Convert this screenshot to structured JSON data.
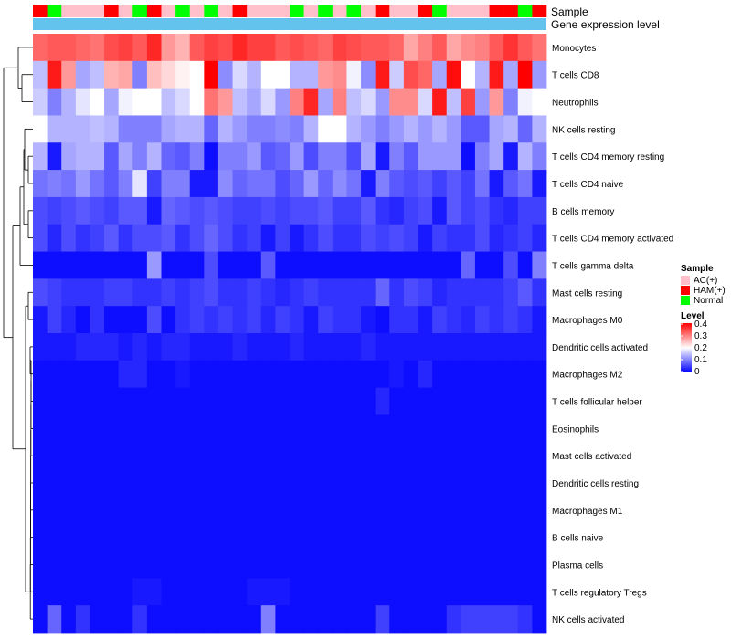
{
  "chart_data": {
    "type": "heatmap",
    "annotation_titles": [
      "Sample",
      "Gene expression level"
    ],
    "legend": {
      "sample_title": "Sample",
      "level_title": "Level",
      "groups": [
        {
          "name": "AC(+)",
          "color": "#ffc0cb"
        },
        {
          "name": "HAM(+)",
          "color": "#ff0000"
        },
        {
          "name": "Normal",
          "color": "#00ff00"
        }
      ],
      "level_ticks": [
        "0.4",
        "0.3",
        "0.2",
        "0.1",
        "0"
      ],
      "level_range": [
        0,
        0.4
      ]
    },
    "colors": {
      "low": "#0000ff",
      "mid": "#ffffff",
      "high": "#ff0000",
      "expression_bar": "#63c3ec"
    },
    "samples": [
      "HAM(+)",
      "Normal",
      "AC(+)",
      "AC(+)",
      "AC(+)",
      "HAM(+)",
      "AC(+)",
      "Normal",
      "HAM(+)",
      "AC(+)",
      "Normal",
      "AC(+)",
      "Normal",
      "AC(+)",
      "HAM(+)",
      "AC(+)",
      "AC(+)",
      "AC(+)",
      "Normal",
      "AC(+)",
      "Normal",
      "AC(+)",
      "Normal",
      "AC(+)",
      "HAM(+)",
      "AC(+)",
      "AC(+)",
      "HAM(+)",
      "Normal",
      "AC(+)",
      "AC(+)",
      "AC(+)",
      "HAM(+)",
      "HAM(+)",
      "Normal",
      "HAM(+)"
    ],
    "rows": [
      {
        "name": "Monocytes",
        "values": [
          0.32,
          0.33,
          0.33,
          0.32,
          0.31,
          0.34,
          0.35,
          0.33,
          0.37,
          0.28,
          0.26,
          0.33,
          0.35,
          0.34,
          0.37,
          0.35,
          0.35,
          0.33,
          0.34,
          0.33,
          0.32,
          0.35,
          0.34,
          0.33,
          0.33,
          0.32,
          0.27,
          0.3,
          0.33,
          0.27,
          0.29,
          0.3,
          0.33,
          0.36,
          0.33,
          0.31
        ]
      },
      {
        "name": "T cells CD8",
        "values": [
          0.15,
          0.38,
          0.28,
          0.13,
          0.15,
          0.26,
          0.27,
          0.1,
          0.25,
          0.23,
          0.21,
          0.2,
          0.4,
          0.11,
          0.17,
          0.14,
          0.2,
          0.2,
          0.14,
          0.14,
          0.28,
          0.29,
          0.19,
          0.11,
          0.38,
          0.16,
          0.34,
          0.32,
          0.13,
          0.39,
          0.2,
          0.14,
          0.38,
          0.13,
          0.4,
          0.12
        ]
      },
      {
        "name": "Neutrophils",
        "values": [
          0.16,
          0.1,
          0.14,
          0.18,
          0.2,
          0.13,
          0.19,
          0.2,
          0.2,
          0.15,
          0.17,
          0.2,
          0.31,
          0.28,
          0.15,
          0.13,
          0.17,
          0.12,
          0.3,
          0.37,
          0.13,
          0.3,
          0.15,
          0.17,
          0.12,
          0.29,
          0.29,
          0.17,
          0.38,
          0.15,
          0.35,
          0.12,
          0.28,
          0.1,
          0.19,
          0.2
        ]
      },
      {
        "name": "NK cells resting",
        "values": [
          0.2,
          0.14,
          0.14,
          0.14,
          0.15,
          0.14,
          0.1,
          0.1,
          0.1,
          0.13,
          0.14,
          0.14,
          0.08,
          0.14,
          0.12,
          0.1,
          0.1,
          0.11,
          0.1,
          0.14,
          0.2,
          0.2,
          0.14,
          0.12,
          0.1,
          0.12,
          0.14,
          0.12,
          0.14,
          0.12,
          0.07,
          0.07,
          0.13,
          0.14,
          0.08,
          0.14
        ]
      },
      {
        "name": "T cells CD4 memory resting",
        "values": [
          0.14,
          0.02,
          0.13,
          0.14,
          0.14,
          0.07,
          0.13,
          0.1,
          0.14,
          0.08,
          0.07,
          0.1,
          0.01,
          0.1,
          0.1,
          0.12,
          0.07,
          0.08,
          0.12,
          0.06,
          0.1,
          0.1,
          0.06,
          0.13,
          0.02,
          0.1,
          0.07,
          0.12,
          0.12,
          0.12,
          0.01,
          0.1,
          0.13,
          0.02,
          0.14,
          0.1
        ]
      },
      {
        "name": "T cells CD4 naive",
        "values": [
          0.09,
          0.1,
          0.09,
          0.12,
          0.09,
          0.07,
          0.1,
          0.18,
          0.05,
          0.1,
          0.1,
          0.02,
          0.02,
          0.11,
          0.08,
          0.09,
          0.09,
          0.06,
          0.08,
          0.12,
          0.08,
          0.11,
          0.09,
          0.02,
          0.1,
          0.07,
          0.06,
          0.07,
          0.05,
          0.07,
          0.05,
          0.09,
          0.02,
          0.07,
          0.09,
          0.02
        ]
      },
      {
        "name": "B cells memory",
        "values": [
          0.06,
          0.05,
          0.06,
          0.07,
          0.06,
          0.05,
          0.07,
          0.07,
          0.02,
          0.08,
          0.07,
          0.06,
          0.07,
          0.06,
          0.05,
          0.05,
          0.06,
          0.05,
          0.06,
          0.06,
          0.07,
          0.05,
          0.05,
          0.07,
          0.04,
          0.03,
          0.05,
          0.06,
          0.02,
          0.07,
          0.05,
          0.06,
          0.04,
          0.03,
          0.05,
          0.05
        ]
      },
      {
        "name": "T cells CD4 memory activated",
        "values": [
          0.06,
          0.03,
          0.06,
          0.04,
          0.05,
          0.07,
          0.04,
          0.06,
          0.06,
          0.07,
          0.04,
          0.06,
          0.08,
          0.06,
          0.04,
          0.05,
          0.02,
          0.05,
          0.02,
          0.04,
          0.06,
          0.04,
          0.04,
          0.06,
          0.05,
          0.06,
          0.05,
          0.02,
          0.05,
          0.04,
          0.04,
          0.06,
          0.03,
          0.04,
          0.05,
          0.03
        ]
      },
      {
        "name": "T cells gamma delta",
        "values": [
          0.01,
          0.01,
          0.01,
          0.01,
          0.01,
          0.01,
          0.01,
          0.01,
          0.12,
          0.01,
          0.01,
          0.01,
          0.06,
          0.01,
          0.01,
          0.01,
          0.07,
          0.01,
          0.01,
          0.01,
          0.01,
          0.01,
          0.01,
          0.01,
          0.01,
          0.01,
          0.01,
          0.01,
          0.01,
          0.01,
          0.08,
          0.01,
          0.01,
          0.06,
          0.01,
          0.1
        ]
      },
      {
        "name": "Mast cells resting",
        "values": [
          0.06,
          0.05,
          0.04,
          0.04,
          0.04,
          0.05,
          0.05,
          0.04,
          0.04,
          0.05,
          0.04,
          0.05,
          0.06,
          0.04,
          0.04,
          0.05,
          0.04,
          0.03,
          0.04,
          0.05,
          0.04,
          0.04,
          0.04,
          0.04,
          0.08,
          0.04,
          0.06,
          0.05,
          0.03,
          0.04,
          0.04,
          0.04,
          0.04,
          0.05,
          0.07,
          0.04
        ]
      },
      {
        "name": "Macrophages M0",
        "values": [
          0.02,
          0.05,
          0.03,
          0.01,
          0.04,
          0.01,
          0.01,
          0.01,
          0.06,
          0.01,
          0.04,
          0.05,
          0.04,
          0.05,
          0.04,
          0.05,
          0.03,
          0.05,
          0.04,
          0.02,
          0.05,
          0.04,
          0.04,
          0.02,
          0.01,
          0.04,
          0.04,
          0.02,
          0.05,
          0.04,
          0.03,
          0.05,
          0.04,
          0.05,
          0.04,
          0.02
        ]
      },
      {
        "name": "Dendritic cells activated",
        "values": [
          0.02,
          0.02,
          0.02,
          0.03,
          0.03,
          0.03,
          0.02,
          0.03,
          0.02,
          0.03,
          0.03,
          0.02,
          0.02,
          0.02,
          0.03,
          0.02,
          0.02,
          0.02,
          0.03,
          0.02,
          0.02,
          0.02,
          0.02,
          0.03,
          0.02,
          0.02,
          0.02,
          0.02,
          0.02,
          0.02,
          0.02,
          0.02,
          0.02,
          0.02,
          0.02,
          0.02
        ]
      },
      {
        "name": "Macrophages M2",
        "values": [
          0.01,
          0.01,
          0.01,
          0.01,
          0.01,
          0.01,
          0.03,
          0.03,
          0.01,
          0.01,
          0.02,
          0.01,
          0.01,
          0.01,
          0.01,
          0.01,
          0.01,
          0.01,
          0.01,
          0.01,
          0.01,
          0.01,
          0.01,
          0.01,
          0.01,
          0.02,
          0.01,
          0.03,
          0.01,
          0.01,
          0.01,
          0.01,
          0.01,
          0.01,
          0.01,
          0.01
        ]
      },
      {
        "name": "T cells follicular helper",
        "values": [
          0.01,
          0.01,
          0.01,
          0.01,
          0.01,
          0.01,
          0.01,
          0.01,
          0.01,
          0.01,
          0.01,
          0.01,
          0.01,
          0.01,
          0.01,
          0.01,
          0.01,
          0.01,
          0.01,
          0.01,
          0.01,
          0.01,
          0.01,
          0.01,
          0.03,
          0.01,
          0.01,
          0.01,
          0.01,
          0.01,
          0.01,
          0.01,
          0.01,
          0.01,
          0.01,
          0.01
        ]
      },
      {
        "name": "Eosinophils",
        "values": [
          0.01,
          0.01,
          0.01,
          0.01,
          0.01,
          0.01,
          0.01,
          0.01,
          0.01,
          0.01,
          0.01,
          0.01,
          0.01,
          0.01,
          0.01,
          0.01,
          0.01,
          0.01,
          0.01,
          0.01,
          0.01,
          0.01,
          0.01,
          0.01,
          0.01,
          0.01,
          0.01,
          0.01,
          0.01,
          0.01,
          0.01,
          0.01,
          0.01,
          0.01,
          0.01,
          0.01
        ]
      },
      {
        "name": "Mast cells activated",
        "values": [
          0.01,
          0.01,
          0.01,
          0.01,
          0.01,
          0.01,
          0.01,
          0.01,
          0.01,
          0.01,
          0.01,
          0.01,
          0.01,
          0.01,
          0.01,
          0.01,
          0.01,
          0.01,
          0.01,
          0.01,
          0.01,
          0.01,
          0.01,
          0.01,
          0.01,
          0.01,
          0.01,
          0.01,
          0.01,
          0.01,
          0.01,
          0.01,
          0.01,
          0.01,
          0.01,
          0.01
        ]
      },
      {
        "name": "Dendritic cells resting",
        "values": [
          0.01,
          0.01,
          0.01,
          0.01,
          0.01,
          0.01,
          0.01,
          0.01,
          0.01,
          0.01,
          0.01,
          0.01,
          0.01,
          0.01,
          0.01,
          0.01,
          0.01,
          0.01,
          0.01,
          0.01,
          0.01,
          0.01,
          0.01,
          0.01,
          0.01,
          0.01,
          0.01,
          0.01,
          0.01,
          0.01,
          0.01,
          0.01,
          0.01,
          0.01,
          0.01,
          0.01
        ]
      },
      {
        "name": "Macrophages M1",
        "values": [
          0.01,
          0.01,
          0.01,
          0.01,
          0.01,
          0.01,
          0.01,
          0.01,
          0.01,
          0.01,
          0.01,
          0.01,
          0.01,
          0.01,
          0.01,
          0.01,
          0.01,
          0.01,
          0.01,
          0.01,
          0.01,
          0.01,
          0.01,
          0.01,
          0.01,
          0.01,
          0.01,
          0.01,
          0.01,
          0.01,
          0.01,
          0.01,
          0.01,
          0.01,
          0.01,
          0.01
        ]
      },
      {
        "name": "B cells naive",
        "values": [
          0.01,
          0.01,
          0.01,
          0.01,
          0.01,
          0.01,
          0.01,
          0.01,
          0.01,
          0.01,
          0.01,
          0.01,
          0.01,
          0.01,
          0.01,
          0.01,
          0.01,
          0.01,
          0.01,
          0.01,
          0.01,
          0.01,
          0.01,
          0.01,
          0.01,
          0.01,
          0.01,
          0.01,
          0.01,
          0.01,
          0.01,
          0.01,
          0.01,
          0.01,
          0.01,
          0.01
        ]
      },
      {
        "name": "Plasma cells",
        "values": [
          0.01,
          0.01,
          0.01,
          0.01,
          0.01,
          0.01,
          0.01,
          0.01,
          0.01,
          0.01,
          0.01,
          0.01,
          0.01,
          0.01,
          0.01,
          0.01,
          0.01,
          0.01,
          0.01,
          0.01,
          0.01,
          0.01,
          0.01,
          0.01,
          0.01,
          0.01,
          0.01,
          0.01,
          0.01,
          0.01,
          0.01,
          0.01,
          0.01,
          0.01,
          0.01,
          0.01
        ]
      },
      {
        "name": "T cells regulatory  Tregs",
        "values": [
          0.01,
          0.01,
          0.01,
          0.01,
          0.01,
          0.01,
          0.01,
          0.02,
          0.02,
          0.01,
          0.01,
          0.01,
          0.01,
          0.01,
          0.01,
          0.02,
          0.02,
          0.02,
          0.01,
          0.01,
          0.01,
          0.01,
          0.01,
          0.01,
          0.01,
          0.01,
          0.01,
          0.01,
          0.01,
          0.01,
          0.01,
          0.01,
          0.01,
          0.01,
          0.01,
          0.01
        ]
      },
      {
        "name": "NK cells activated",
        "values": [
          0.01,
          0.08,
          0.01,
          0.04,
          0.01,
          0.01,
          0.01,
          0.04,
          0.01,
          0.01,
          0.01,
          0.01,
          0.01,
          0.01,
          0.01,
          0.01,
          0.1,
          0.01,
          0.01,
          0.01,
          0.01,
          0.01,
          0.01,
          0.01,
          0.05,
          0.01,
          0.01,
          0.01,
          0.01,
          0.04,
          0.05,
          0.05,
          0.05,
          0.05,
          0.04,
          0.01
        ]
      }
    ]
  }
}
